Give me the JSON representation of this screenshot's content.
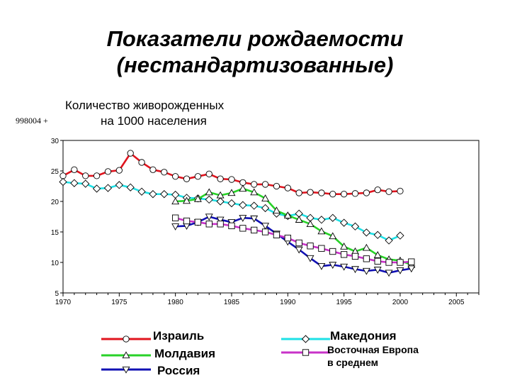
{
  "page": {
    "title_line1": "Показатели рождаемости",
    "title_line2": "(нестандартизованные)",
    "subtitle_line1": "Количество живорожденных",
    "subtitle_line2": "на 1000 населения",
    "code": "998004 +"
  },
  "chart_data": {
    "type": "line",
    "ylim": [
      5,
      30
    ],
    "xlim": [
      1970,
      2007
    ],
    "yticks": [
      5,
      10,
      15,
      20,
      25,
      30
    ],
    "xticks": [
      1970,
      1975,
      1980,
      1985,
      1990,
      1995,
      2000,
      2005
    ],
    "grid": false,
    "legend_position": "bottom",
    "series": [
      {
        "name": "Израиль",
        "color": "#e0141e",
        "marker": "circle",
        "x": [
          1970,
          1971,
          1972,
          1973,
          1974,
          1975,
          1976,
          1977,
          1978,
          1979,
          1980,
          1981,
          1982,
          1983,
          1984,
          1985,
          1986,
          1987,
          1988,
          1989,
          1990,
          1991,
          1992,
          1993,
          1994,
          1995,
          1996,
          1997,
          1998,
          1999,
          2000
        ],
        "y": [
          24.2,
          25.2,
          24.2,
          24.2,
          24.9,
          25.1,
          27.9,
          26.4,
          25.2,
          24.8,
          24.1,
          23.7,
          24.1,
          24.5,
          23.7,
          23.6,
          23.1,
          22.8,
          22.8,
          22.5,
          22.2,
          21.4,
          21.5,
          21.4,
          21.2,
          21.2,
          21.3,
          21.4,
          21.9,
          21.6,
          21.7
        ]
      },
      {
        "name": "Македония",
        "color": "#1ee1e6",
        "marker": "diamond",
        "x": [
          1970,
          1971,
          1972,
          1973,
          1974,
          1975,
          1976,
          1977,
          1978,
          1979,
          1980,
          1981,
          1982,
          1983,
          1984,
          1985,
          1986,
          1987,
          1988,
          1989,
          1990,
          1991,
          1992,
          1993,
          1994,
          1995,
          1996,
          1997,
          1998,
          1999,
          2000
        ],
        "y": [
          23.2,
          23.0,
          22.9,
          22.1,
          22.2,
          22.7,
          22.3,
          21.6,
          21.2,
          21.2,
          21.1,
          20.6,
          20.5,
          20.3,
          20.0,
          19.7,
          19.4,
          19.3,
          18.9,
          18.0,
          17.6,
          18.0,
          17.3,
          17.0,
          17.3,
          16.5,
          15.9,
          14.9,
          14.5,
          13.6,
          14.4
        ]
      },
      {
        "name": "Молдавия",
        "color": "#28d228",
        "marker": "triangle-up",
        "x": [
          1980,
          1981,
          1982,
          1983,
          1984,
          1985,
          1986,
          1987,
          1988,
          1989,
          1990,
          1991,
          1992,
          1993,
          1994,
          1995,
          1996,
          1997,
          1998,
          1999,
          2000,
          2001
        ],
        "y": [
          20.0,
          20.1,
          20.4,
          21.5,
          21.0,
          21.4,
          22.1,
          21.5,
          20.5,
          18.5,
          17.7,
          17.0,
          16.3,
          15.1,
          14.3,
          12.6,
          11.8,
          12.4,
          11.2,
          10.5,
          10.3,
          9.6
        ]
      },
      {
        "name": "Россия",
        "color": "#1010b4",
        "marker": "triangle-down",
        "x": [
          1980,
          1981,
          1982,
          1983,
          1984,
          1985,
          1986,
          1987,
          1988,
          1989,
          1990,
          1991,
          1992,
          1993,
          1994,
          1995,
          1996,
          1997,
          1998,
          1999,
          2000,
          2001
        ],
        "y": [
          15.9,
          16.0,
          16.6,
          17.5,
          17.0,
          16.6,
          17.3,
          17.2,
          16.0,
          14.7,
          13.4,
          12.1,
          10.7,
          9.4,
          9.6,
          9.3,
          8.9,
          8.6,
          8.8,
          8.3,
          8.7,
          9.0
        ]
      },
      {
        "name": "Восточная Европа в среднем",
        "color": "#c832c8",
        "marker": "square",
        "x": [
          1980,
          1981,
          1982,
          1983,
          1984,
          1985,
          1986,
          1987,
          1988,
          1989,
          1990,
          1991,
          1992,
          1993,
          1994,
          1995,
          1996,
          1997,
          1998,
          1999,
          2000,
          2001
        ],
        "y": [
          17.3,
          16.8,
          16.6,
          16.3,
          16.3,
          16.0,
          15.6,
          15.3,
          15.0,
          14.5,
          14.0,
          13.2,
          12.7,
          12.3,
          11.8,
          11.3,
          11.0,
          10.6,
          10.2,
          10.0,
          10.0,
          10.1
        ]
      }
    ]
  },
  "legend": {
    "israel": "Израиль",
    "moldova": "Молдавия",
    "russia": "Россия",
    "macedonia": "Македония",
    "east_europe_line1": "Восточная Европа",
    "east_europe_line2": "в среднем"
  }
}
